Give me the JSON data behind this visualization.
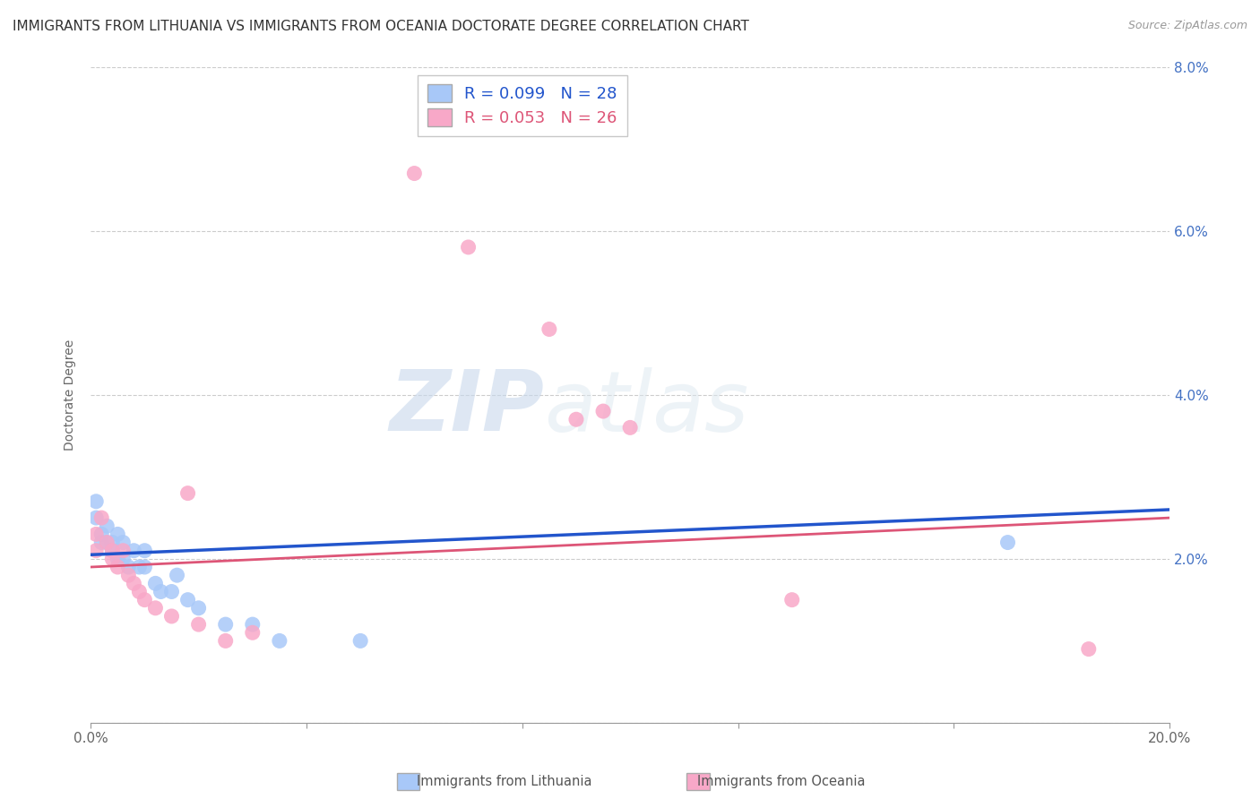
{
  "title": "IMMIGRANTS FROM LITHUANIA VS IMMIGRANTS FROM OCEANIA DOCTORATE DEGREE CORRELATION CHART",
  "source": "Source: ZipAtlas.com",
  "ylabel": "Doctorate Degree",
  "legend_label1": "Immigrants from Lithuania",
  "legend_label2": "Immigrants from Oceania",
  "r1": 0.099,
  "n1": 28,
  "r2": 0.053,
  "n2": 26,
  "color1": "#a8c8f8",
  "color2": "#f8a8c8",
  "line_color1": "#2255cc",
  "line_color2": "#dd5577",
  "xlim": [
    0.0,
    0.2
  ],
  "ylim": [
    0.0,
    0.08
  ],
  "xticks": [
    0.0,
    0.04,
    0.08,
    0.12,
    0.16,
    0.2
  ],
  "xtick_labels_bottom": [
    "0.0%",
    "",
    "",
    "",
    "",
    "20.0%"
  ],
  "yticks": [
    0.0,
    0.02,
    0.04,
    0.06,
    0.08
  ],
  "ytick_labels_right": [
    "",
    "2.0%",
    "4.0%",
    "6.0%",
    "8.0%"
  ],
  "background_color": "#ffffff",
  "scatter1_x": [
    0.001,
    0.001,
    0.002,
    0.002,
    0.003,
    0.003,
    0.004,
    0.004,
    0.005,
    0.005,
    0.006,
    0.006,
    0.007,
    0.008,
    0.009,
    0.01,
    0.01,
    0.012,
    0.013,
    0.015,
    0.016,
    0.018,
    0.02,
    0.025,
    0.03,
    0.035,
    0.05,
    0.17
  ],
  "scatter1_y": [
    0.027,
    0.025,
    0.023,
    0.022,
    0.024,
    0.022,
    0.022,
    0.021,
    0.023,
    0.02,
    0.022,
    0.02,
    0.019,
    0.021,
    0.019,
    0.021,
    0.019,
    0.017,
    0.016,
    0.016,
    0.018,
    0.015,
    0.014,
    0.012,
    0.012,
    0.01,
    0.01,
    0.022
  ],
  "scatter2_x": [
    0.001,
    0.001,
    0.002,
    0.003,
    0.004,
    0.004,
    0.005,
    0.006,
    0.007,
    0.008,
    0.009,
    0.01,
    0.012,
    0.015,
    0.018,
    0.02,
    0.025,
    0.03,
    0.06,
    0.07,
    0.085,
    0.09,
    0.1,
    0.095,
    0.13,
    0.185
  ],
  "scatter2_y": [
    0.023,
    0.021,
    0.025,
    0.022,
    0.02,
    0.021,
    0.019,
    0.021,
    0.018,
    0.017,
    0.016,
    0.015,
    0.014,
    0.013,
    0.028,
    0.012,
    0.01,
    0.011,
    0.067,
    0.058,
    0.048,
    0.037,
    0.036,
    0.038,
    0.015,
    0.009
  ],
  "watermark_zip": "ZIP",
  "watermark_atlas": "atlas",
  "title_fontsize": 11,
  "axis_label_fontsize": 10,
  "tick_fontsize": 11
}
